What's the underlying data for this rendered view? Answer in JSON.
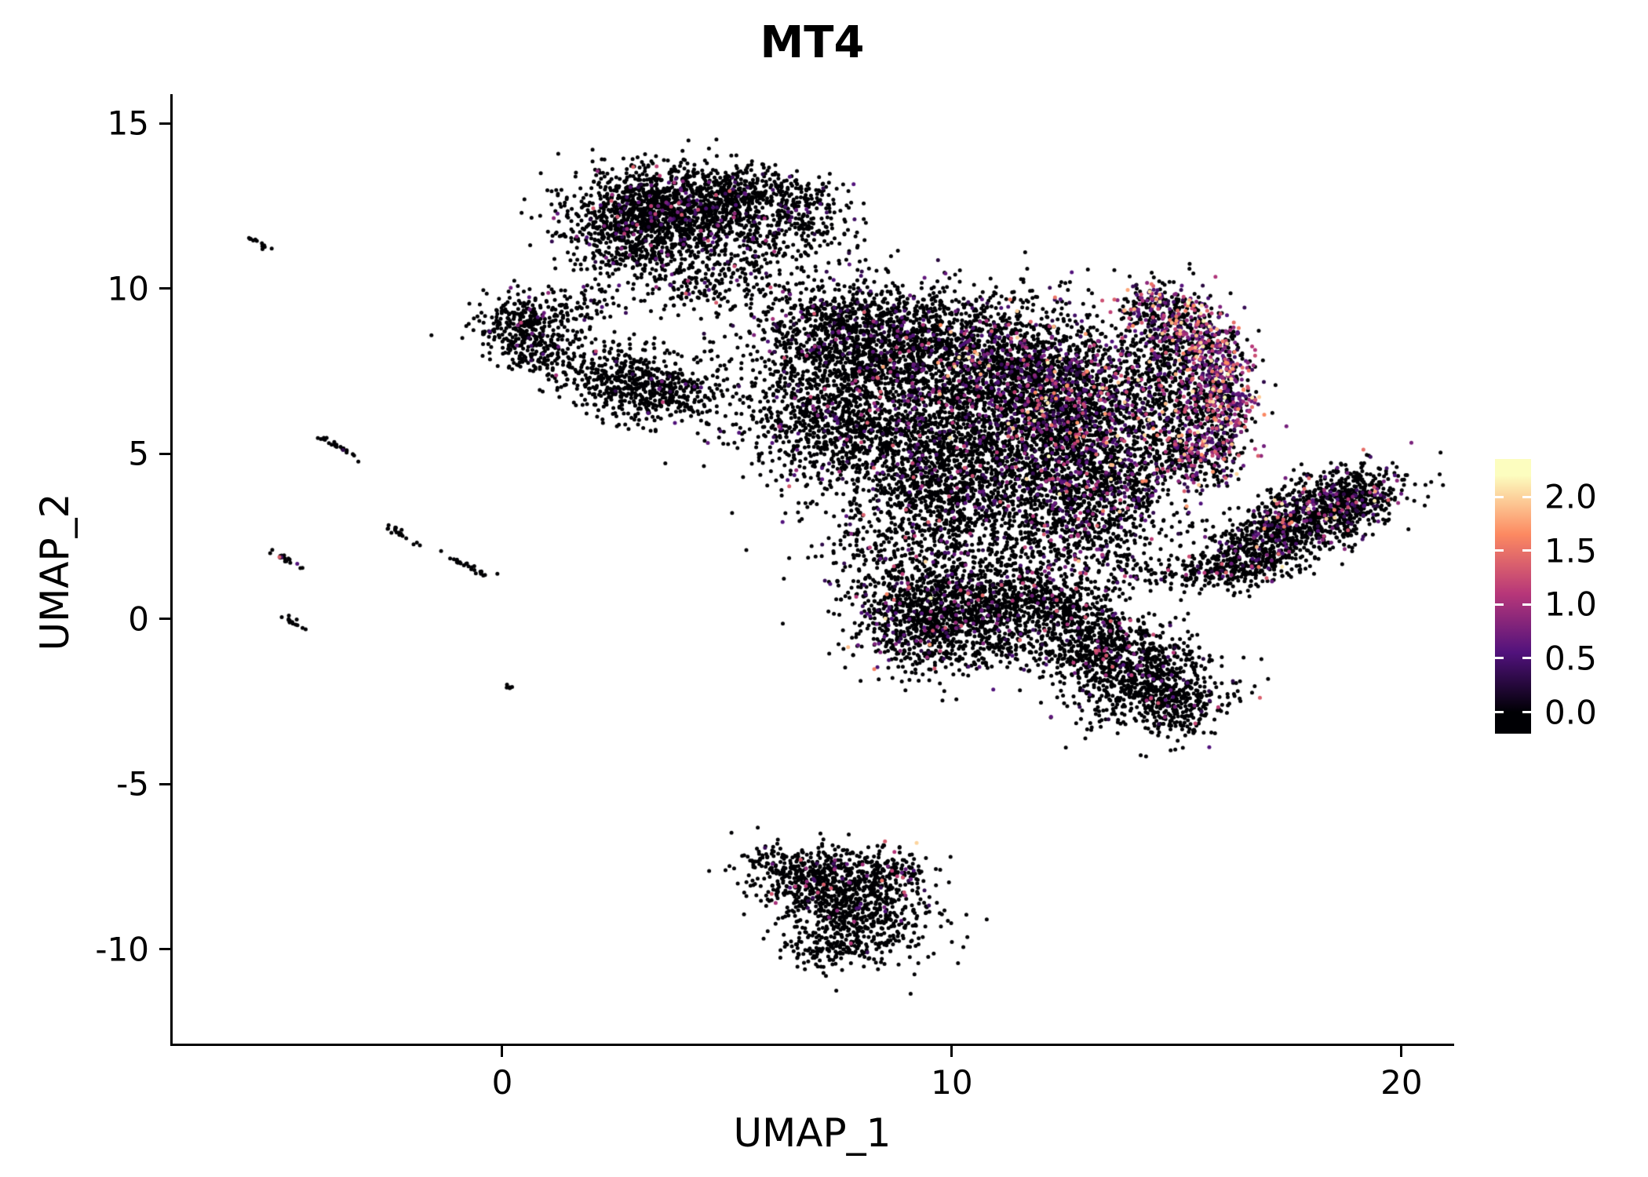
{
  "title": "MT4",
  "axes": {
    "x": {
      "label": "UMAP_1",
      "ticks": [
        {
          "value": 0,
          "label": "0"
        },
        {
          "value": 10,
          "label": "10"
        },
        {
          "value": 20,
          "label": "20"
        }
      ]
    },
    "y": {
      "label": "UMAP_2",
      "ticks": [
        {
          "value": 15,
          "label": "15"
        },
        {
          "value": 10,
          "label": "10"
        },
        {
          "value": 5,
          "label": "5"
        },
        {
          "value": 0,
          "label": "0"
        },
        {
          "value": -5,
          "label": "-5"
        },
        {
          "value": -10,
          "label": "-10"
        }
      ]
    }
  },
  "legend": {
    "bar_domain": [
      -0.2,
      2.35
    ],
    "ticks": [
      {
        "value": 2.0,
        "label": "2.0"
      },
      {
        "value": 1.5,
        "label": "1.5"
      },
      {
        "value": 1.0,
        "label": "1.0"
      },
      {
        "value": 0.5,
        "label": "0.5"
      },
      {
        "value": 0.0,
        "label": "0.0"
      }
    ],
    "gradient_stops": [
      "#000004 0%",
      "#000004 7.8%",
      "#51127c 29.4%",
      "#b73779 51%",
      "#fc8961 72.5%",
      "#fcfdbf 94.1%",
      "#fcfdbf 100%"
    ]
  },
  "chart_data": {
    "type": "scatter",
    "title": "MT4",
    "xlabel": "UMAP_1",
    "ylabel": "UMAP_2",
    "xlim": [
      -7.33,
      21.12
    ],
    "ylim": [
      -12.86,
      15.88
    ],
    "grid": false,
    "legend_position": "right",
    "color_scale": {
      "name": "magma",
      "domain": [
        0,
        2.2
      ],
      "stops": [
        [
          "0",
          "#000004"
        ],
        [
          "0.25",
          "#51127c"
        ],
        [
          "0.5",
          "#b73779"
        ],
        [
          "0.75",
          "#fc8961"
        ],
        [
          "1",
          "#fcfdbf"
        ]
      ]
    },
    "point_radius_px": 2.5,
    "seed": 42,
    "expression_bins": {
      "zero": 0,
      "low": [
        0.25,
        0.7
      ],
      "mid": [
        0.7,
        1.4
      ],
      "high": [
        1.4,
        2.2
      ]
    },
    "clusters": [
      {
        "name": "left-streaks",
        "blobs": [
          {
            "cx": -5.45,
            "cy": 11.4,
            "sx": 0.18,
            "sy": 0.04,
            "rot": -38,
            "n": 12,
            "expr": [
              1,
              0,
              0,
              0
            ]
          },
          {
            "cx": -3.65,
            "cy": 5.2,
            "sx": 0.3,
            "sy": 0.05,
            "rot": -38,
            "n": 26,
            "expr": [
              0.97,
              0.03,
              0,
              0
            ]
          },
          {
            "cx": -2.3,
            "cy": 2.6,
            "sx": 0.25,
            "sy": 0.05,
            "rot": -38,
            "n": 20,
            "expr": [
              1,
              0,
              0,
              0
            ]
          },
          {
            "cx": -4.85,
            "cy": 1.85,
            "sx": 0.22,
            "sy": 0.05,
            "rot": -38,
            "n": 18,
            "expr": [
              0.78,
              0.12,
              0.1,
              0
            ]
          },
          {
            "cx": -4.7,
            "cy": -0.05,
            "sx": 0.18,
            "sy": 0.05,
            "rot": -38,
            "n": 14,
            "expr": [
              1,
              0,
              0,
              0
            ]
          },
          {
            "cx": -0.7,
            "cy": 1.55,
            "sx": 0.32,
            "sy": 0.05,
            "rot": -38,
            "n": 26,
            "expr": [
              1,
              0,
              0,
              0
            ]
          },
          {
            "cx": 0.2,
            "cy": -2.1,
            "sx": 0.08,
            "sy": 0.04,
            "rot": -38,
            "n": 6,
            "expr": [
              1,
              0,
              0,
              0
            ]
          }
        ]
      },
      {
        "name": "top-center",
        "blobs": [
          {
            "cx": 3.9,
            "cy": 12.4,
            "sx": 1.15,
            "sy": 0.65,
            "rot": -8,
            "n": 1300,
            "expr": [
              0.93,
              0.05,
              0.02,
              0
            ]
          },
          {
            "cx": 2.8,
            "cy": 11.6,
            "sx": 0.7,
            "sy": 0.6,
            "rot": 0,
            "n": 450,
            "expr": [
              0.94,
              0.04,
              0.02,
              0
            ]
          },
          {
            "cx": 5.3,
            "cy": 12.9,
            "sx": 0.6,
            "sy": 0.4,
            "rot": 0,
            "n": 260,
            "expr": [
              0.95,
              0.04,
              0.01,
              0
            ]
          },
          {
            "cx": 6.6,
            "cy": 12.6,
            "sx": 0.35,
            "sy": 0.45,
            "rot": 0,
            "n": 110,
            "expr": [
              0.95,
              0.05,
              0,
              0
            ]
          },
          {
            "cx": 4.3,
            "cy": 10.4,
            "sx": 1.0,
            "sy": 0.55,
            "rot": 0,
            "n": 240,
            "expr": [
              0.9,
              0.07,
              0.03,
              0
            ]
          },
          {
            "cx": 5.9,
            "cy": 11.3,
            "sx": 0.7,
            "sy": 0.6,
            "rot": 0,
            "n": 100,
            "expr": [
              0.95,
              0.05,
              0,
              0
            ]
          },
          {
            "cx": 7.3,
            "cy": 12.0,
            "sx": 0.5,
            "sy": 0.7,
            "rot": 0,
            "n": 70,
            "expr": [
              0.95,
              0.05,
              0,
              0
            ]
          }
        ]
      },
      {
        "name": "left-small",
        "blobs": [
          {
            "cx": 0.55,
            "cy": 9.0,
            "sx": 0.6,
            "sy": 0.45,
            "rot": 0,
            "n": 330,
            "expr": [
              0.97,
              0.02,
              0.01,
              0
            ]
          },
          {
            "cx": 0.8,
            "cy": 8.0,
            "sx": 0.45,
            "sy": 0.35,
            "rot": 0,
            "n": 110,
            "expr": [
              0.97,
              0.03,
              0,
              0
            ]
          },
          {
            "cx": 1.8,
            "cy": 9.5,
            "sx": 0.4,
            "sy": 0.25,
            "rot": 0,
            "n": 45,
            "expr": [
              0.95,
              0.05,
              0,
              0
            ]
          }
        ]
      },
      {
        "name": "mid-left",
        "blobs": [
          {
            "cx": 2.8,
            "cy": 7.2,
            "sx": 0.85,
            "sy": 0.55,
            "rot": -15,
            "n": 520,
            "expr": [
              0.96,
              0.03,
              0.01,
              0
            ]
          },
          {
            "cx": 3.9,
            "cy": 6.8,
            "sx": 0.5,
            "sy": 0.35,
            "rot": 0,
            "n": 150,
            "expr": [
              0.95,
              0.04,
              0.01,
              0
            ]
          }
        ]
      },
      {
        "name": "central-mass",
        "blobs": [
          {
            "cx": 8.1,
            "cy": 8.7,
            "sx": 1.3,
            "sy": 0.8,
            "rot": -10,
            "n": 1200,
            "expr": [
              0.92,
              0.06,
              0.02,
              0
            ]
          },
          {
            "cx": 7.2,
            "cy": 6.4,
            "sx": 1.1,
            "sy": 1.2,
            "rot": 0,
            "n": 1000,
            "expr": [
              0.93,
              0.05,
              0.02,
              0
            ]
          },
          {
            "cx": 9.0,
            "cy": 5.2,
            "sx": 1.1,
            "sy": 1.0,
            "rot": 0,
            "n": 900,
            "expr": [
              0.92,
              0.06,
              0.02,
              0
            ]
          },
          {
            "cx": 10.6,
            "cy": 7.6,
            "sx": 1.4,
            "sy": 1.2,
            "rot": 0,
            "n": 1600,
            "expr": [
              0.88,
              0.08,
              0.03,
              0.01
            ]
          },
          {
            "cx": 12.6,
            "cy": 6.6,
            "sx": 1.1,
            "sy": 1.1,
            "rot": 0,
            "n": 1500,
            "expr": [
              0.74,
              0.15,
              0.08,
              0.03
            ]
          },
          {
            "cx": 11.6,
            "cy": 4.6,
            "sx": 1.3,
            "sy": 0.9,
            "rot": 0,
            "n": 1000,
            "expr": [
              0.9,
              0.07,
              0.03,
              0
            ]
          },
          {
            "cx": 13.6,
            "cy": 4.0,
            "sx": 0.8,
            "sy": 0.9,
            "rot": 0,
            "n": 550,
            "expr": [
              0.84,
              0.1,
              0.04,
              0.02
            ]
          },
          {
            "cx": 9.9,
            "cy": 3.2,
            "sx": 1.0,
            "sy": 0.7,
            "rot": 0,
            "n": 500,
            "expr": [
              0.92,
              0.06,
              0.02,
              0
            ]
          },
          {
            "cx": 12.4,
            "cy": 2.6,
            "sx": 0.7,
            "sy": 0.6,
            "rot": 0,
            "n": 280,
            "expr": [
              0.88,
              0.08,
              0.04,
              0
            ]
          },
          {
            "cx": 8.8,
            "cy": 1.9,
            "sx": 1.0,
            "sy": 0.6,
            "rot": 0,
            "n": 170,
            "expr": [
              0.93,
              0.05,
              0.02,
              0
            ]
          },
          {
            "cx": 13.9,
            "cy": 1.6,
            "sx": 0.9,
            "sy": 0.5,
            "rot": 0,
            "n": 140,
            "expr": [
              0.9,
              0.07,
              0.03,
              0
            ]
          }
        ]
      },
      {
        "name": "high-expression-crescent",
        "blobs": [
          {
            "cx": 14.6,
            "cy": 9.4,
            "sx": 0.5,
            "sy": 0.35,
            "rot": -20,
            "n": 180,
            "expr": [
              0.5,
              0.2,
              0.18,
              0.12
            ]
          },
          {
            "cx": 15.5,
            "cy": 8.6,
            "sx": 0.45,
            "sy": 0.5,
            "rot": -30,
            "n": 230,
            "expr": [
              0.45,
              0.22,
              0.2,
              0.13
            ]
          },
          {
            "cx": 16.0,
            "cy": 7.4,
            "sx": 0.38,
            "sy": 0.6,
            "rot": 0,
            "n": 260,
            "expr": [
              0.45,
              0.25,
              0.2,
              0.1
            ]
          },
          {
            "cx": 16.05,
            "cy": 6.1,
            "sx": 0.4,
            "sy": 0.6,
            "rot": 0,
            "n": 260,
            "expr": [
              0.5,
              0.24,
              0.18,
              0.08
            ]
          },
          {
            "cx": 15.5,
            "cy": 4.9,
            "sx": 0.5,
            "sy": 0.5,
            "rot": 30,
            "n": 210,
            "expr": [
              0.58,
              0.22,
              0.14,
              0.06
            ]
          },
          {
            "cx": 14.7,
            "cy": 8.0,
            "sx": 0.6,
            "sy": 1.1,
            "rot": 0,
            "n": 400,
            "expr": [
              0.85,
              0.09,
              0.05,
              0.01
            ]
          },
          {
            "cx": 15.1,
            "cy": 6.0,
            "sx": 0.5,
            "sy": 0.9,
            "rot": 0,
            "n": 280,
            "expr": [
              0.85,
              0.1,
              0.04,
              0.01
            ]
          }
        ]
      },
      {
        "name": "right-diagonal",
        "blobs": [
          {
            "cx": 17.7,
            "cy": 2.9,
            "sx": 1.15,
            "sy": 0.55,
            "rot": 33,
            "n": 1100,
            "expr": [
              0.86,
              0.08,
              0.04,
              0.02
            ]
          },
          {
            "cx": 18.9,
            "cy": 3.6,
            "sx": 0.5,
            "sy": 0.4,
            "rot": 33,
            "n": 240,
            "expr": [
              0.8,
              0.1,
              0.07,
              0.03
            ]
          },
          {
            "cx": 16.4,
            "cy": 1.7,
            "sx": 0.5,
            "sy": 0.35,
            "rot": 0,
            "n": 180,
            "expr": [
              0.9,
              0.07,
              0.03,
              0
            ]
          },
          {
            "cx": 15.4,
            "cy": 1.3,
            "sx": 0.6,
            "sy": 0.25,
            "rot": 0,
            "n": 70,
            "expr": [
              0.9,
              0.07,
              0.03,
              0
            ]
          }
        ]
      },
      {
        "name": "lower-middle",
        "blobs": [
          {
            "cx": 9.3,
            "cy": 0.2,
            "sx": 0.8,
            "sy": 0.9,
            "rot": 0,
            "n": 800,
            "expr": [
              0.88,
              0.08,
              0.03,
              0.01
            ]
          },
          {
            "cx": 10.7,
            "cy": 0.4,
            "sx": 0.8,
            "sy": 0.7,
            "rot": 0,
            "n": 550,
            "expr": [
              0.9,
              0.07,
              0.03,
              0
            ]
          },
          {
            "cx": 12.0,
            "cy": 0.7,
            "sx": 0.7,
            "sy": 0.6,
            "rot": 0,
            "n": 360,
            "expr": [
              0.88,
              0.08,
              0.04,
              0
            ]
          },
          {
            "cx": 11.0,
            "cy": -0.9,
            "sx": 0.9,
            "sy": 0.4,
            "rot": 0,
            "n": 200,
            "expr": [
              0.92,
              0.06,
              0.02,
              0
            ]
          }
        ]
      },
      {
        "name": "lower-right",
        "blobs": [
          {
            "cx": 14.1,
            "cy": -1.7,
            "sx": 0.9,
            "sy": 0.75,
            "rot": -20,
            "n": 850,
            "expr": [
              0.94,
              0.04,
              0.02,
              0
            ]
          },
          {
            "cx": 13.2,
            "cy": -0.6,
            "sx": 0.6,
            "sy": 0.5,
            "rot": 0,
            "n": 300,
            "expr": [
              0.93,
              0.05,
              0.02,
              0
            ]
          },
          {
            "cx": 15.1,
            "cy": -2.7,
            "sx": 0.5,
            "sy": 0.45,
            "rot": 0,
            "n": 190,
            "expr": [
              0.95,
              0.04,
              0.01,
              0
            ]
          },
          {
            "cx": 12.7,
            "cy": 0.2,
            "sx": 0.5,
            "sy": 0.4,
            "rot": 0,
            "n": 110,
            "expr": [
              0.93,
              0.05,
              0.02,
              0
            ]
          }
        ]
      },
      {
        "name": "bottom",
        "blobs": [
          {
            "cx": 6.8,
            "cy": -7.8,
            "sx": 0.8,
            "sy": 0.45,
            "rot": -10,
            "n": 420,
            "expr": [
              0.93,
              0.05,
              0.02,
              0
            ]
          },
          {
            "cx": 7.8,
            "cy": -8.8,
            "sx": 0.9,
            "sy": 0.7,
            "rot": -30,
            "n": 620,
            "expr": [
              0.97,
              0.02,
              0.01,
              0
            ]
          },
          {
            "cx": 8.6,
            "cy": -7.6,
            "sx": 0.5,
            "sy": 0.3,
            "rot": 0,
            "n": 140,
            "expr": [
              0.9,
              0.06,
              0.03,
              0.01
            ]
          },
          {
            "cx": 7.2,
            "cy": -9.9,
            "sx": 0.5,
            "sy": 0.4,
            "rot": 0,
            "n": 140,
            "expr": [
              1,
              0,
              0,
              0
            ]
          }
        ]
      }
    ]
  }
}
